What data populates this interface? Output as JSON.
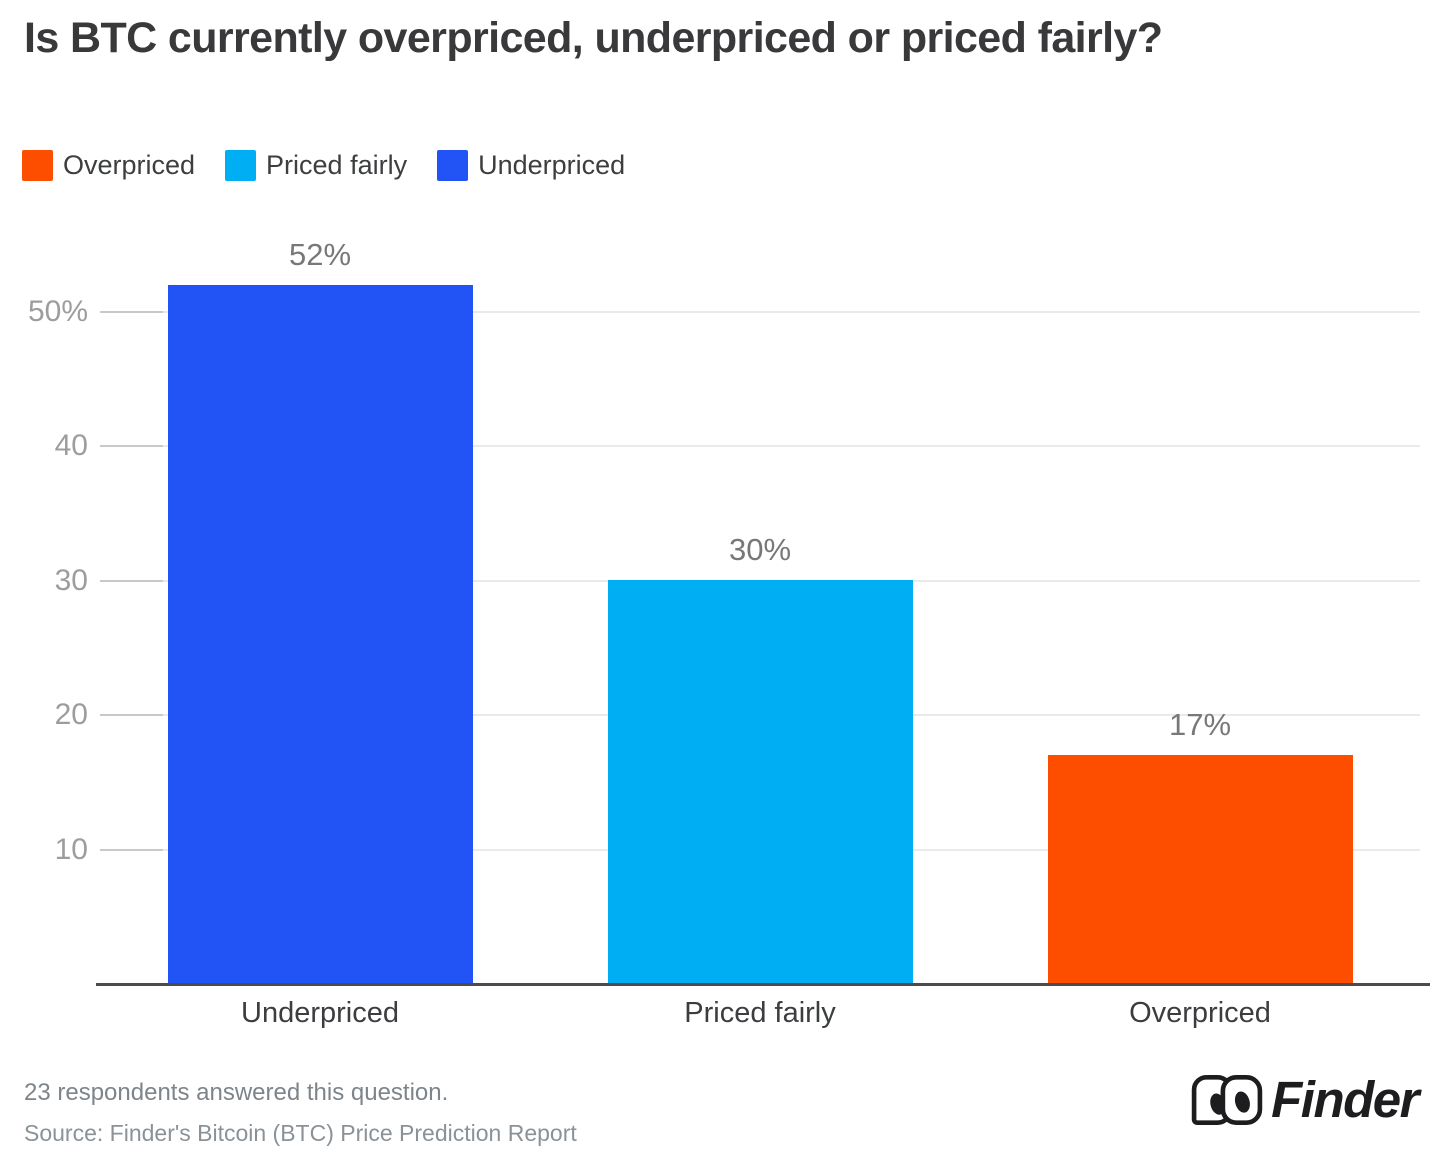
{
  "title": "Is BTC currently overpriced, underpriced or priced fairly?",
  "legend": {
    "items": [
      {
        "label": "Overpriced",
        "color": "#FD4E00"
      },
      {
        "label": "Priced fairly",
        "color": "#00AEF4"
      },
      {
        "label": "Underpriced",
        "color": "#2254F5"
      }
    ]
  },
  "chart_data": {
    "type": "bar",
    "title": "Is BTC currently overpriced, underpriced or priced fairly?",
    "categories": [
      "Underpriced",
      "Priced fairly",
      "Overpriced"
    ],
    "values": [
      52,
      30,
      17
    ],
    "value_labels": [
      "52%",
      "30%",
      "17%"
    ],
    "bar_colors": [
      "#2254F5",
      "#00AEF4",
      "#FD4E00"
    ],
    "yticks": [
      {
        "value": 10,
        "label": "10"
      },
      {
        "value": 20,
        "label": "20"
      },
      {
        "value": 30,
        "label": "30"
      },
      {
        "value": 40,
        "label": "40"
      },
      {
        "value": 50,
        "label": "50%"
      }
    ],
    "ylim": [
      0,
      56
    ],
    "xlabel": "",
    "ylabel": "",
    "grid": "horizontal",
    "legend_position": "top-left"
  },
  "footer": {
    "respondents": "23 respondents answered this question.",
    "source": "Source: Finder's Bitcoin (BTC) Price Prediction Report"
  },
  "logo": {
    "text": "Finder"
  }
}
